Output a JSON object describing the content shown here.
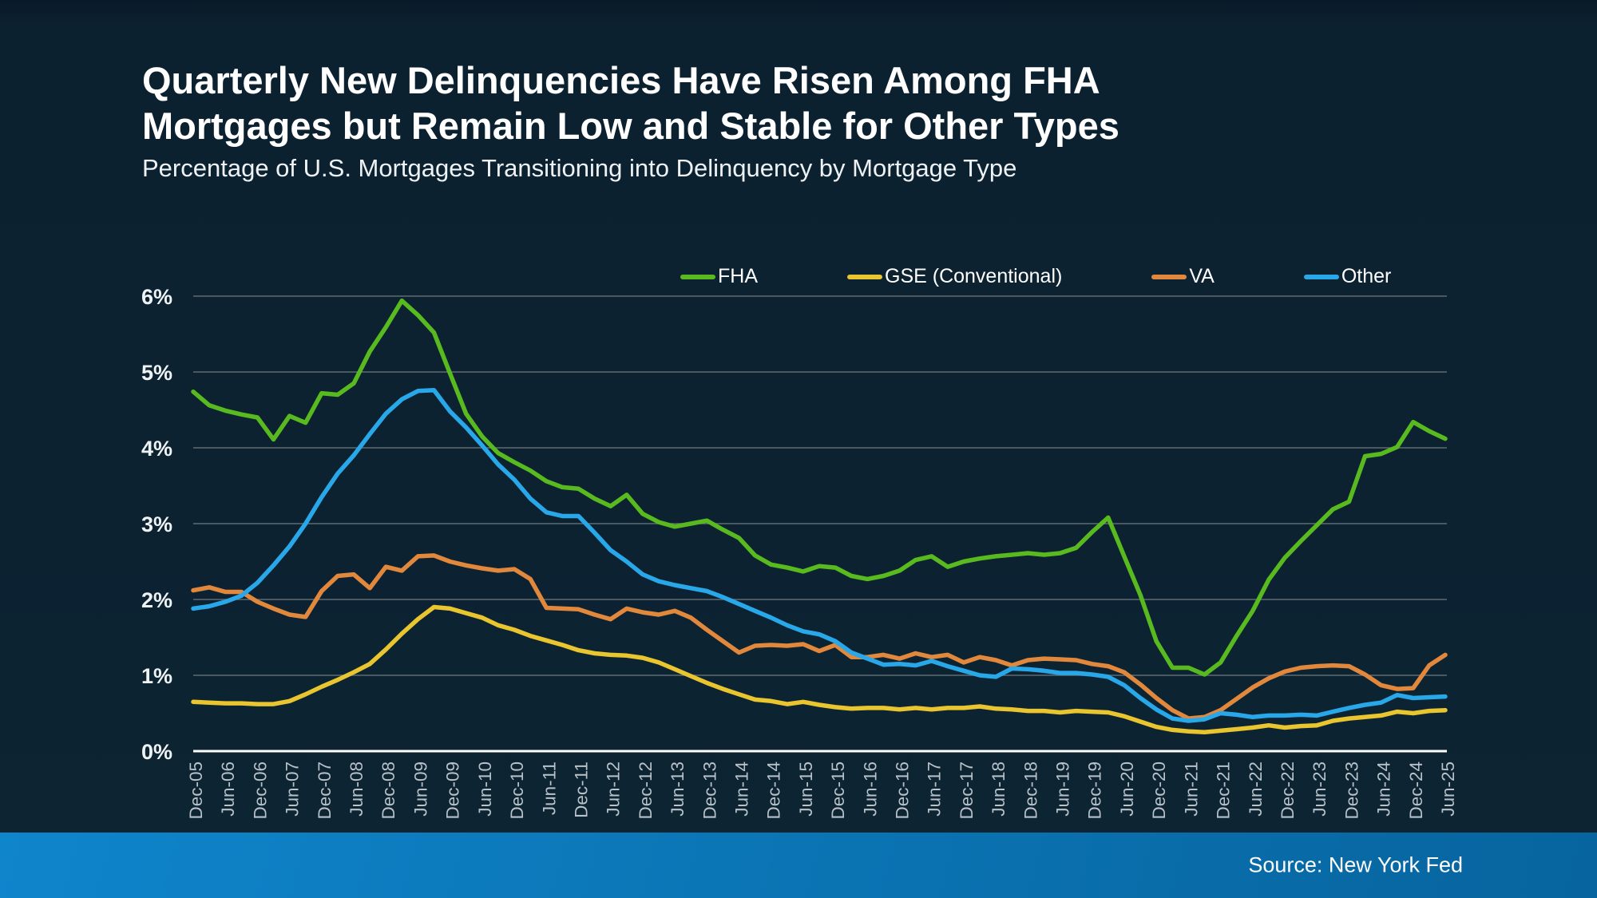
{
  "header": {
    "title_line1": "Quarterly New Delinquencies Have Risen Among FHA",
    "title_line2": "Mortgages but Remain Low and Stable for Other Types",
    "subtitle": "Percentage of U.S. Mortgages Transitioning into Delinquency by Mortgage Type"
  },
  "footer": {
    "source": "Source: New York Fed"
  },
  "colors": {
    "background": "#0c2231",
    "gridline": "#5f6a72",
    "zero_axis": "#ffffff",
    "x_tick_label": "#b8c2c8",
    "y_tick_label": "#eef2f4"
  },
  "chart_data": {
    "type": "line",
    "title": "Quarterly New Delinquencies Have Risen Among FHA Mortgages but Remain Low and Stable for Other Types",
    "subtitle": "Percentage of U.S. Mortgages Transitioning into Delinquency by Mortgage Type",
    "xlabel": "",
    "ylabel": "",
    "ylim": [
      0,
      6
    ],
    "grid": true,
    "legend_position": "top",
    "x_tick_step": 2,
    "y_tick_labels": [
      "0%",
      "1%",
      "2%",
      "3%",
      "4%",
      "5%",
      "6%"
    ],
    "x": [
      "Dec-05",
      "Mar-06",
      "Jun-06",
      "Sep-06",
      "Dec-06",
      "Mar-07",
      "Jun-07",
      "Sep-07",
      "Dec-07",
      "Mar-08",
      "Jun-08",
      "Sep-08",
      "Dec-08",
      "Mar-09",
      "Jun-09",
      "Sep-09",
      "Dec-09",
      "Mar-10",
      "Jun-10",
      "Sep-10",
      "Dec-10",
      "Mar-11",
      "Jun-11",
      "Sep-11",
      "Dec-11",
      "Mar-12",
      "Jun-12",
      "Sep-12",
      "Dec-12",
      "Mar-13",
      "Jun-13",
      "Sep-13",
      "Dec-13",
      "Mar-14",
      "Jun-14",
      "Sep-14",
      "Dec-14",
      "Mar-15",
      "Jun-15",
      "Sep-15",
      "Dec-15",
      "Mar-16",
      "Jun-16",
      "Sep-16",
      "Dec-16",
      "Mar-17",
      "Jun-17",
      "Sep-17",
      "Dec-17",
      "Mar-18",
      "Jun-18",
      "Sep-18",
      "Dec-18",
      "Mar-19",
      "Jun-19",
      "Sep-19",
      "Dec-19",
      "Mar-20",
      "Jun-20",
      "Sep-20",
      "Dec-20",
      "Mar-21",
      "Jun-21",
      "Sep-21",
      "Dec-21",
      "Mar-22",
      "Jun-22",
      "Sep-22",
      "Dec-22",
      "Mar-23",
      "Jun-23",
      "Sep-23",
      "Dec-23",
      "Mar-24",
      "Jun-24",
      "Sep-24",
      "Dec-24",
      "Mar-25",
      "Jun-25"
    ],
    "series": [
      {
        "name": "FHA",
        "color": "#58ba1f",
        "values": [
          4.74,
          4.56,
          4.49,
          4.44,
          4.4,
          4.11,
          4.42,
          4.33,
          4.72,
          4.7,
          4.85,
          5.27,
          5.59,
          5.94,
          5.75,
          5.52,
          4.98,
          4.45,
          4.15,
          3.93,
          3.81,
          3.7,
          3.56,
          3.48,
          3.46,
          3.33,
          3.23,
          3.38,
          3.13,
          3.02,
          2.96,
          3.0,
          3.04,
          2.92,
          2.81,
          2.58,
          2.46,
          2.42,
          2.37,
          2.44,
          2.42,
          2.31,
          2.27,
          2.31,
          2.38,
          2.52,
          2.57,
          2.43,
          2.5,
          2.54,
          2.57,
          2.59,
          2.61,
          2.59,
          2.61,
          2.68,
          2.89,
          3.08,
          2.57,
          2.06,
          1.45,
          1.1,
          1.1,
          1.01,
          1.17,
          1.52,
          1.85,
          2.26,
          2.55,
          2.77,
          2.98,
          3.19,
          3.29,
          3.89,
          3.92,
          4.01,
          4.34,
          4.22,
          4.12
        ]
      },
      {
        "name": "GSE (Conventional)",
        "color": "#e9c52f",
        "values": [
          0.65,
          0.64,
          0.63,
          0.63,
          0.62,
          0.62,
          0.66,
          0.75,
          0.85,
          0.94,
          1.04,
          1.15,
          1.34,
          1.55,
          1.74,
          1.9,
          1.88,
          1.82,
          1.76,
          1.66,
          1.6,
          1.52,
          1.46,
          1.4,
          1.33,
          1.29,
          1.27,
          1.26,
          1.23,
          1.17,
          1.08,
          0.99,
          0.9,
          0.82,
          0.75,
          0.68,
          0.66,
          0.62,
          0.65,
          0.61,
          0.58,
          0.56,
          0.57,
          0.57,
          0.55,
          0.57,
          0.55,
          0.57,
          0.57,
          0.59,
          0.56,
          0.55,
          0.53,
          0.53,
          0.51,
          0.53,
          0.52,
          0.51,
          0.46,
          0.39,
          0.32,
          0.28,
          0.26,
          0.25,
          0.27,
          0.29,
          0.31,
          0.34,
          0.31,
          0.33,
          0.34,
          0.4,
          0.43,
          0.45,
          0.47,
          0.52,
          0.5,
          0.53,
          0.54
        ]
      },
      {
        "name": "VA",
        "color": "#e1883c",
        "values": [
          2.12,
          2.16,
          2.1,
          2.1,
          1.97,
          1.88,
          1.8,
          1.77,
          2.11,
          2.31,
          2.33,
          2.15,
          2.43,
          2.38,
          2.57,
          2.58,
          2.5,
          2.45,
          2.41,
          2.38,
          2.4,
          2.27,
          1.89,
          1.88,
          1.87,
          1.8,
          1.74,
          1.88,
          1.83,
          1.8,
          1.85,
          1.76,
          1.6,
          1.45,
          1.3,
          1.39,
          1.4,
          1.39,
          1.41,
          1.32,
          1.4,
          1.24,
          1.24,
          1.27,
          1.22,
          1.29,
          1.24,
          1.27,
          1.17,
          1.24,
          1.2,
          1.13,
          1.2,
          1.22,
          1.21,
          1.2,
          1.15,
          1.12,
          1.04,
          0.88,
          0.7,
          0.54,
          0.43,
          0.45,
          0.54,
          0.69,
          0.84,
          0.96,
          1.05,
          1.1,
          1.12,
          1.13,
          1.12,
          1.01,
          0.87,
          0.82,
          0.83,
          1.13,
          1.27
        ]
      },
      {
        "name": "Other",
        "color": "#29a8e9",
        "values": [
          1.88,
          1.91,
          1.97,
          2.05,
          2.22,
          2.45,
          2.7,
          3.0,
          3.35,
          3.66,
          3.9,
          4.18,
          4.45,
          4.64,
          4.75,
          4.76,
          4.48,
          4.27,
          4.03,
          3.78,
          3.58,
          3.33,
          3.15,
          3.1,
          3.1,
          2.88,
          2.65,
          2.5,
          2.33,
          2.24,
          2.19,
          2.15,
          2.11,
          2.03,
          1.94,
          1.85,
          1.76,
          1.66,
          1.58,
          1.54,
          1.45,
          1.3,
          1.22,
          1.14,
          1.15,
          1.13,
          1.19,
          1.12,
          1.06,
          1.0,
          0.98,
          1.09,
          1.08,
          1.06,
          1.03,
          1.03,
          1.01,
          0.98,
          0.87,
          0.7,
          0.55,
          0.43,
          0.4,
          0.42,
          0.5,
          0.48,
          0.45,
          0.47,
          0.47,
          0.48,
          0.47,
          0.52,
          0.57,
          0.61,
          0.64,
          0.74,
          0.7,
          0.71,
          0.72
        ]
      }
    ]
  }
}
